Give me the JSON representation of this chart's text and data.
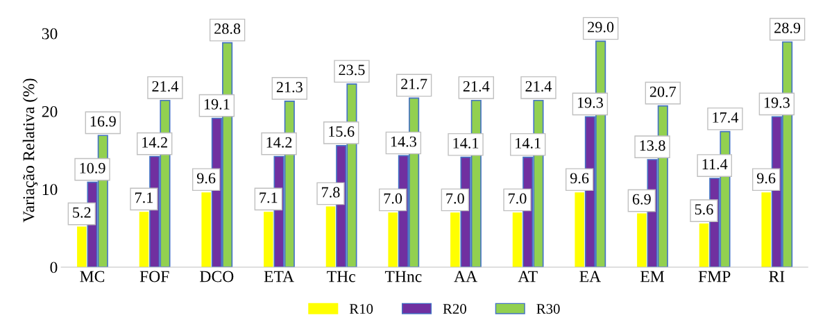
{
  "chart_data": {
    "type": "bar",
    "ylabel": "Variação Relativa (%)",
    "categories": [
      "MC",
      "FOF",
      "DCO",
      "ETA",
      "THc",
      "THnc",
      "AA",
      "AT",
      "EA",
      "EM",
      "FMP",
      "RI"
    ],
    "series": [
      {
        "name": "R10",
        "color": "#ffff00",
        "values": [
          5.2,
          7.1,
          9.6,
          7.1,
          7.8,
          7.0,
          7.0,
          7.0,
          9.6,
          6.9,
          5.6,
          9.6
        ],
        "value_labels": [
          "5.2",
          "7.1",
          "9.6",
          "7.1",
          "7.8",
          "7.0",
          "7.0",
          "7.0",
          "9.6",
          "6.9",
          "5.6",
          "9.6"
        ]
      },
      {
        "name": "R20",
        "color": "#7030a0",
        "values": [
          10.9,
          14.2,
          19.1,
          14.2,
          15.6,
          14.3,
          14.1,
          14.1,
          19.3,
          13.8,
          11.4,
          19.3
        ],
        "value_labels": [
          "10.9",
          "14.2",
          "19.1",
          "14.2",
          "15.6",
          "14.3",
          "14.1",
          "14.1",
          "19.3",
          "13.8",
          "11.4",
          "19.3"
        ]
      },
      {
        "name": "R30",
        "color": "#92d050",
        "values": [
          16.9,
          21.4,
          28.8,
          21.3,
          23.5,
          21.7,
          21.4,
          21.4,
          29.0,
          20.7,
          17.4,
          28.9
        ],
        "value_labels": [
          "16.9",
          "21.4",
          "28.8",
          "21.3",
          "23.5",
          "21.7",
          "21.4",
          "21.4",
          "29.0",
          "20.7",
          "17.4",
          "28.9"
        ]
      }
    ],
    "ylim": [
      0,
      30
    ],
    "yticks": [
      0,
      10,
      20,
      30
    ],
    "grid": false,
    "legend": "bottom"
  }
}
